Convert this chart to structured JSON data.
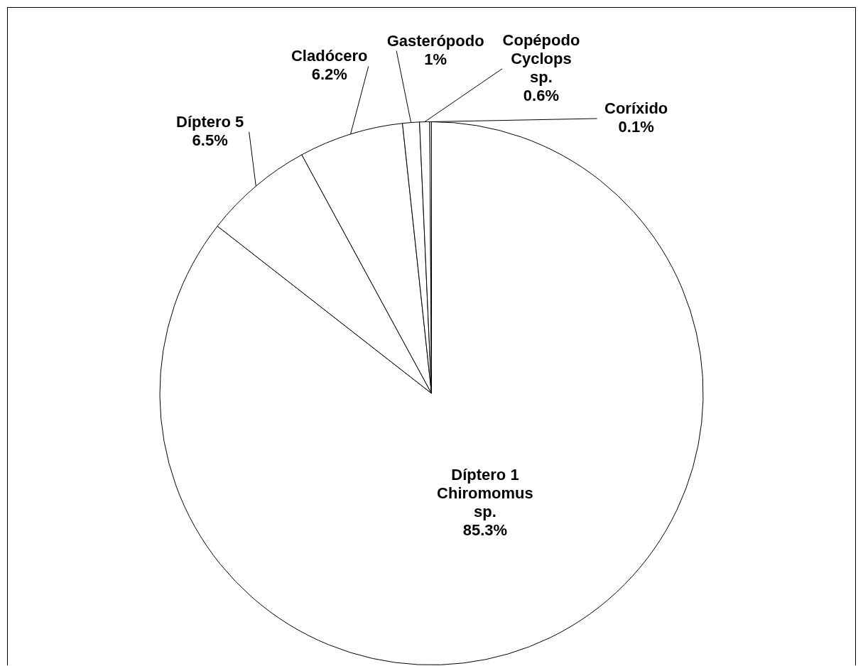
{
  "chart_data": {
    "type": "pie",
    "categories": [
      "Díptero 1 Chiromomus sp.",
      "Díptero 5",
      "Cladócero",
      "Gasterópodo",
      "Copépodo Cyclops sp.",
      "Coríxido"
    ],
    "values": [
      85.3,
      6.5,
      6.2,
      1,
      0.6,
      0.1
    ],
    "value_labels": [
      "85.3%",
      "6.5%",
      "6.2%",
      "1%",
      "0.6%",
      "0.1%"
    ],
    "colors": [
      "#ffffff",
      "#ffffff",
      "#ffffff",
      "#ffffff",
      "#ffffff",
      "#ffffff"
    ],
    "legend": false
  }
}
